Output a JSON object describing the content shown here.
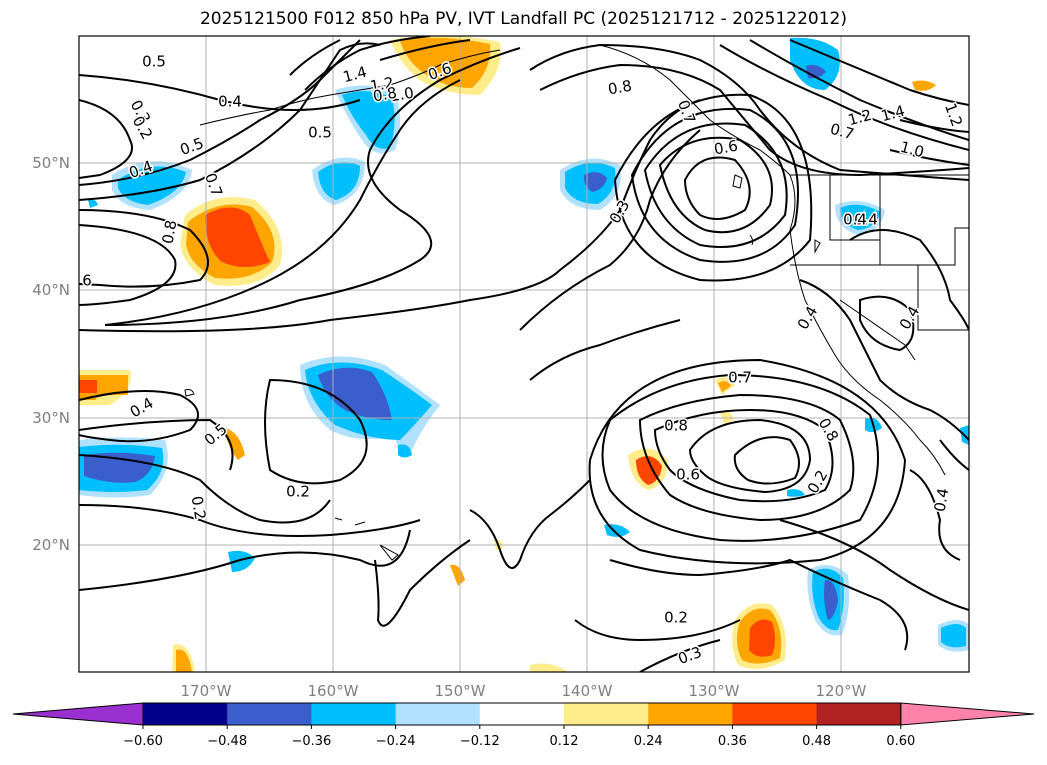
{
  "title": "2025121500 F012 850 hPa PV, IVT Landfall PC (2025121712 - 2025122012)",
  "map": {
    "lat_labels": [
      "50°N",
      "40°N",
      "30°N",
      "20°N"
    ],
    "lon_labels": [
      "170°W",
      "160°W",
      "150°W",
      "140°W",
      "130°W",
      "120°W"
    ],
    "grid": true
  },
  "colorbar": {
    "ticks": [
      "−0.60",
      "−0.48",
      "−0.36",
      "−0.24",
      "−0.12",
      "0.12",
      "0.24",
      "0.36",
      "0.48",
      "0.60"
    ],
    "colors": [
      "#9b30d0",
      "#00008b",
      "#3a5fcd",
      "#00bfff",
      "#b0e2ff",
      "#ffffff",
      "#ffec8b",
      "#ffa500",
      "#ff4500",
      "#b22222",
      "#ff82ab"
    ]
  },
  "contour_labels": [
    {
      "text": "0.5"
    },
    {
      "text": "0.4"
    },
    {
      "text": "0.3"
    },
    {
      "text": "0.2"
    },
    {
      "text": "0.5"
    },
    {
      "text": "0.4"
    },
    {
      "text": "0.5"
    },
    {
      "text": "1.4"
    },
    {
      "text": "1.2"
    },
    {
      "text": "1.0"
    },
    {
      "text": "0.8"
    },
    {
      "text": "0.6"
    },
    {
      "text": "0.8"
    },
    {
      "text": "0.7"
    },
    {
      "text": "1.2"
    },
    {
      "text": "1.4"
    },
    {
      "text": "1.0"
    },
    {
      "text": "0.6"
    },
    {
      "text": "0.7"
    },
    {
      "text": "0.3"
    },
    {
      "text": "0.4"
    },
    {
      "text": "0.8"
    },
    {
      "text": "0.7"
    },
    {
      "text": "6"
    },
    {
      "text": "0.4"
    },
    {
      "text": "0.4"
    },
    {
      "text": "0.4"
    },
    {
      "text": "0.5"
    },
    {
      "text": "0.7"
    },
    {
      "text": "0.8"
    },
    {
      "text": "0.6"
    },
    {
      "text": "0.8"
    },
    {
      "text": "0.2"
    },
    {
      "text": "0.2"
    },
    {
      "text": "0.2"
    },
    {
      "text": "0.2"
    },
    {
      "text": "0.3"
    },
    {
      "text": "0.4"
    },
    {
      "text": "0.4"
    },
    {
      "text": "1.2"
    }
  ]
}
